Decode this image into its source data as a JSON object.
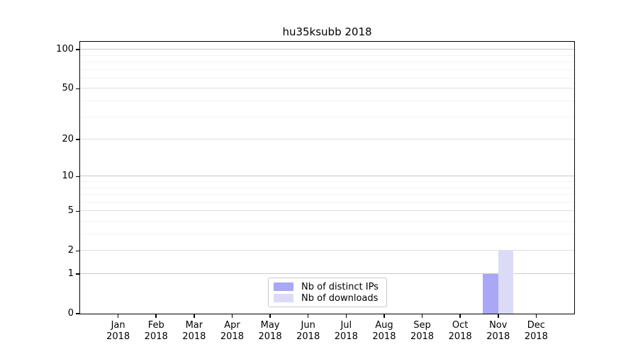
{
  "chart_data": {
    "type": "bar",
    "title": "hu35ksubb 2018",
    "categories": [
      "Jan",
      "Feb",
      "Mar",
      "Apr",
      "May",
      "Jun",
      "Jul",
      "Aug",
      "Sep",
      "Oct",
      "Nov",
      "Dec"
    ],
    "category_year": "2018",
    "series": [
      {
        "name": "Nb of distinct IPs",
        "color": "#a8a8f6",
        "values": [
          0,
          0,
          0,
          0,
          0,
          0,
          0,
          0,
          0,
          0,
          1,
          0
        ]
      },
      {
        "name": "Nb of downloads",
        "color": "#dbdbf8",
        "values": [
          0,
          0,
          0,
          0,
          0,
          0,
          0,
          0,
          0,
          0,
          2,
          0
        ]
      }
    ],
    "y_axis": {
      "scale": "log1p",
      "ticks": [
        0,
        1,
        2,
        5,
        10,
        20,
        50,
        100
      ],
      "decade_gridlines": [
        1,
        10,
        100
      ],
      "labeled_gridlines": [
        2,
        5,
        20,
        50
      ],
      "minor_gridlines": [
        3,
        4,
        6,
        7,
        8,
        9,
        30,
        40,
        60,
        70,
        80,
        90
      ],
      "max_value": 115
    },
    "xlabel": "",
    "ylabel": "",
    "legend_position": "bottom-center",
    "grid": true
  }
}
